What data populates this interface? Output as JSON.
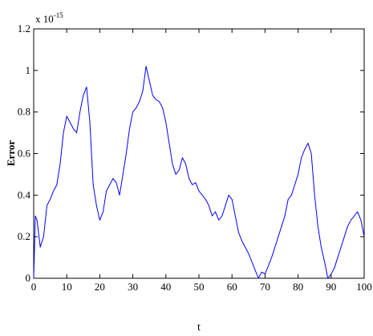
{
  "chart_data": {
    "type": "line",
    "title": "",
    "xlabel": "t",
    "ylabel": "Error",
    "xlim": [
      0,
      100
    ],
    "ylim": [
      0,
      1.2
    ],
    "y_multiplier": "x 10",
    "y_exponent": "-15",
    "grid": false,
    "legend": "none",
    "line_color": "#0000ff",
    "x_ticks": [
      "0",
      "10",
      "20",
      "30",
      "40",
      "50",
      "60",
      "70",
      "80",
      "90",
      "100"
    ],
    "y_ticks": [
      "0",
      "0.2",
      "0.4",
      "0.6",
      "0.8",
      "1",
      "1.2"
    ],
    "series": [
      {
        "x": [
          0,
          0.5,
          1,
          2,
          3,
          4,
          5,
          6,
          7,
          8,
          9,
          10,
          11,
          12,
          13,
          14,
          15,
          16,
          17,
          18,
          19,
          20,
          21,
          22,
          23,
          24,
          25,
          26,
          27,
          28,
          29,
          30,
          31,
          32,
          33,
          34,
          35,
          36,
          37,
          38,
          39,
          40,
          41,
          42,
          43,
          44,
          45,
          46,
          47,
          48,
          49,
          50,
          51,
          52,
          53,
          54,
          55,
          56,
          57,
          58,
          59,
          60,
          61,
          62,
          63,
          64,
          65,
          66,
          67,
          68,
          69,
          70,
          71,
          72,
          73,
          74,
          75,
          76,
          77,
          78,
          79,
          80,
          81,
          82,
          83,
          84,
          85,
          86,
          87,
          88,
          89,
          90,
          91,
          92,
          93,
          94,
          95,
          96,
          97,
          98,
          99,
          100
        ],
        "values": [
          0.0,
          0.3,
          0.28,
          0.15,
          0.2,
          0.35,
          0.38,
          0.42,
          0.45,
          0.55,
          0.7,
          0.78,
          0.75,
          0.72,
          0.7,
          0.8,
          0.88,
          0.92,
          0.75,
          0.45,
          0.35,
          0.28,
          0.32,
          0.42,
          0.45,
          0.48,
          0.46,
          0.4,
          0.5,
          0.6,
          0.72,
          0.8,
          0.82,
          0.85,
          0.9,
          1.02,
          0.95,
          0.88,
          0.86,
          0.85,
          0.82,
          0.75,
          0.65,
          0.55,
          0.5,
          0.52,
          0.58,
          0.55,
          0.48,
          0.45,
          0.46,
          0.42,
          0.4,
          0.38,
          0.35,
          0.3,
          0.32,
          0.28,
          0.3,
          0.35,
          0.4,
          0.38,
          0.3,
          0.22,
          0.18,
          0.15,
          0.12,
          0.08,
          0.04,
          0.0,
          0.03,
          0.02,
          0.06,
          0.1,
          0.15,
          0.2,
          0.25,
          0.3,
          0.38,
          0.4,
          0.45,
          0.5,
          0.58,
          0.62,
          0.65,
          0.6,
          0.4,
          0.25,
          0.15,
          0.08,
          0.0,
          0.02,
          0.05,
          0.1,
          0.15,
          0.2,
          0.25,
          0.28,
          0.3,
          0.32,
          0.28,
          0.2
        ]
      }
    ]
  }
}
